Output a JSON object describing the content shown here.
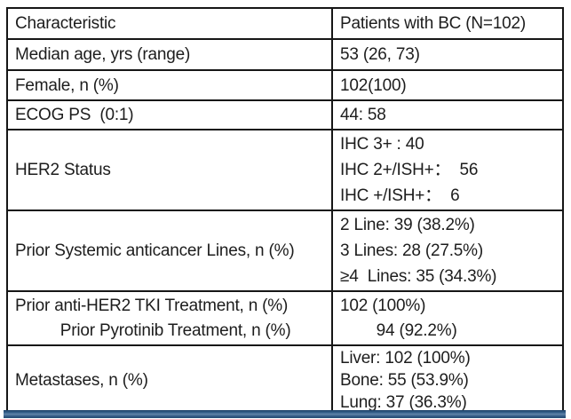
{
  "table": {
    "header": {
      "characteristic": "Characteristic",
      "patients": "Patients with BC (N=102)"
    },
    "rows": [
      {
        "label": [
          "Median age, yrs (range)"
        ],
        "values": [
          "53 (26, 73)"
        ]
      },
      {
        "label": [
          "Female, n (%)"
        ],
        "values": [
          "102(100)"
        ]
      },
      {
        "label": [
          "ECOG PS  (0:1)"
        ],
        "values": [
          "44: 58"
        ]
      },
      {
        "label": [
          "HER2 Status"
        ],
        "values": [
          "IHC 3+ : 40",
          "IHC 2+/ISH+：  56",
          "IHC +/ISH+：  6"
        ]
      },
      {
        "label": [
          "Prior Systemic anticancer Lines, n (%)"
        ],
        "values": [
          "2 Line: 39 (38.2%)",
          "3 Lines: 28 (27.5%)",
          "≥4  Lines: 35 (34.3%)"
        ]
      },
      {
        "label": [
          "Prior anti-HER2 TKI Treatment, n (%)",
          "          Prior Pyrotinib Treatment, n (%)"
        ],
        "values": [
          "102 (100%)",
          "        94 (92.2%)"
        ]
      },
      {
        "label": [
          "Metastases, n (%)"
        ],
        "values": [
          "Liver: 102 (100%)",
          "Bone: 55 (53.9%)",
          "Lung: 37 (36.3%)"
        ]
      }
    ]
  },
  "colors": {
    "table_border": "#161616",
    "text": "#1d1d1d",
    "accent_bar_blue": "#2e5680"
  }
}
